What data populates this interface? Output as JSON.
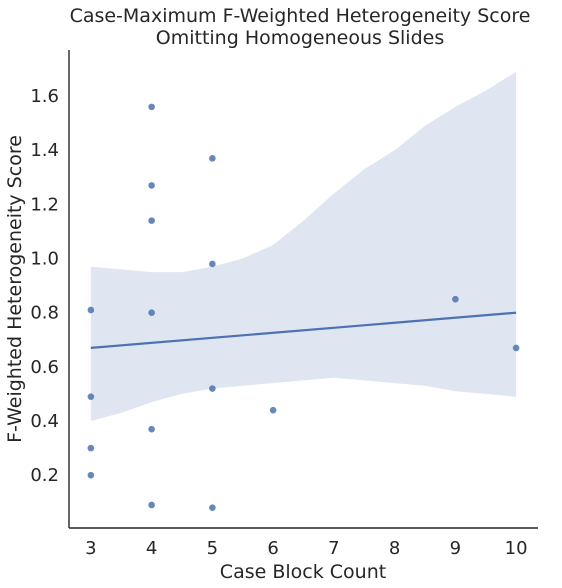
{
  "chart_data": {
    "type": "scatter",
    "title_lines": [
      "Case-Maximum F-Weighted Heterogeneity Score",
      "Omitting Homogeneous Slides"
    ],
    "xlabel": "Case Block Count",
    "ylabel": "F-Weighted Heterogeneity Score",
    "xlim": [
      2.64,
      10.36
    ],
    "ylim": [
      0.005,
      1.77
    ],
    "xticks": [
      3,
      4,
      5,
      6,
      7,
      8,
      9,
      10
    ],
    "xtick_labels": [
      "3",
      "4",
      "5",
      "6",
      "7",
      "8",
      "9",
      "10"
    ],
    "yticks": [
      0.2,
      0.4,
      0.6,
      0.8,
      1.0,
      1.2,
      1.4,
      1.6
    ],
    "ytick_labels": [
      "0.2",
      "0.4",
      "0.6",
      "0.8",
      "1.0",
      "1.2",
      "1.4",
      "1.6"
    ],
    "grid": false,
    "colors": {
      "points": "#4c72b0",
      "line": "#4c72b0",
      "band": "#dfe6f1",
      "axis": "#262626"
    },
    "points": [
      {
        "x": 3,
        "y": 0.81
      },
      {
        "x": 3,
        "y": 0.49
      },
      {
        "x": 3,
        "y": 0.3
      },
      {
        "x": 3,
        "y": 0.2
      },
      {
        "x": 4,
        "y": 1.56
      },
      {
        "x": 4,
        "y": 1.27
      },
      {
        "x": 4,
        "y": 1.14
      },
      {
        "x": 4,
        "y": 0.8
      },
      {
        "x": 4,
        "y": 0.37
      },
      {
        "x": 4,
        "y": 0.09
      },
      {
        "x": 5,
        "y": 1.37
      },
      {
        "x": 5,
        "y": 0.98
      },
      {
        "x": 5,
        "y": 0.52
      },
      {
        "x": 5,
        "y": 0.08
      },
      {
        "x": 6,
        "y": 0.44
      },
      {
        "x": 9,
        "y": 0.85
      },
      {
        "x": 10,
        "y": 0.67
      }
    ],
    "regression": {
      "x": [
        3,
        10
      ],
      "y": [
        0.67,
        0.8
      ]
    },
    "confidence_band": {
      "x": [
        3,
        3.5,
        4,
        4.5,
        5,
        5.5,
        6,
        6.5,
        7,
        7.5,
        8,
        8.5,
        9,
        9.5,
        10
      ],
      "upper": [
        0.97,
        0.96,
        0.95,
        0.95,
        0.97,
        1.0,
        1.05,
        1.14,
        1.24,
        1.33,
        1.4,
        1.49,
        1.56,
        1.62,
        1.69
      ],
      "lower": [
        0.4,
        0.43,
        0.47,
        0.5,
        0.52,
        0.53,
        0.54,
        0.55,
        0.56,
        0.55,
        0.54,
        0.53,
        0.51,
        0.5,
        0.49
      ]
    }
  }
}
